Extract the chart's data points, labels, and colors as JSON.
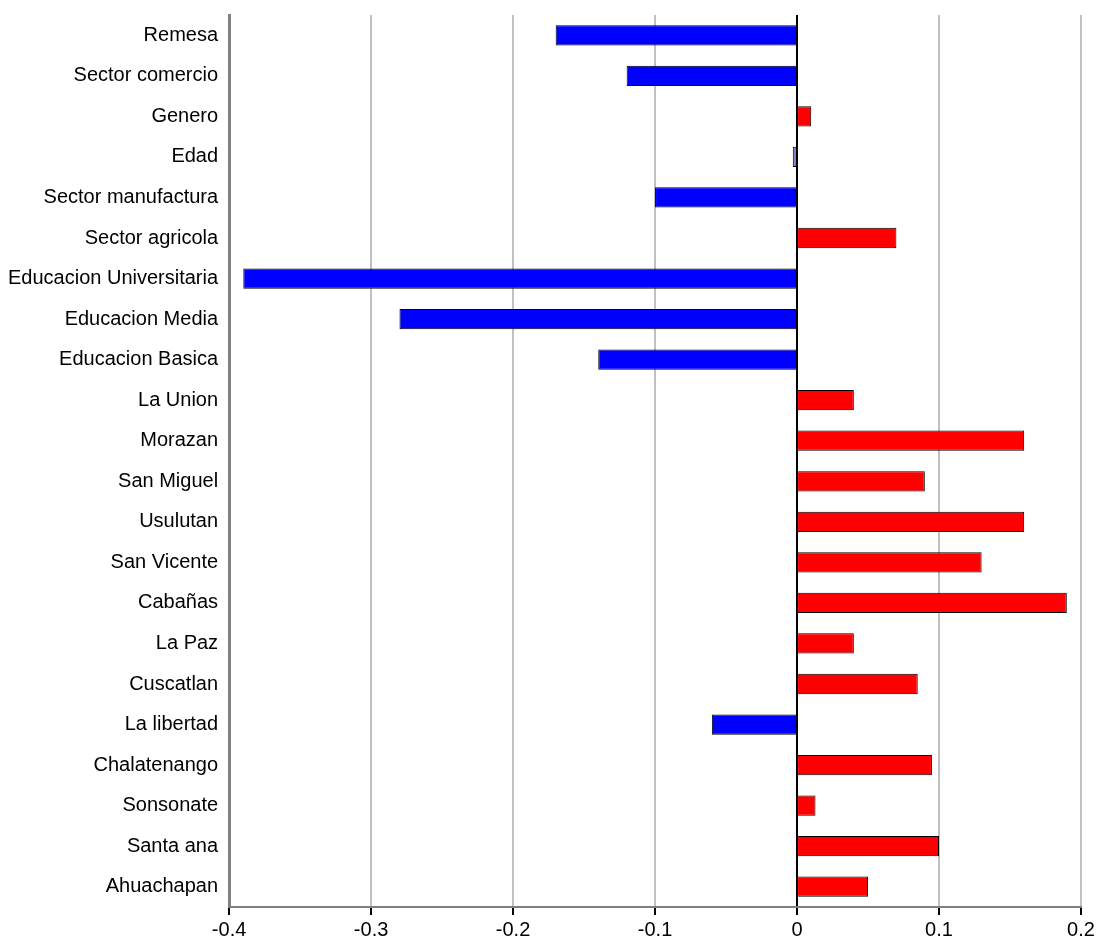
{
  "chart_data": {
    "type": "bar",
    "orientation": "horizontal",
    "categories": [
      "Remesa",
      "Sector comercio",
      "Genero",
      "Edad",
      "Sector manufactura",
      "Sector agricola",
      "Educacion Universitaria",
      "Educacion Media",
      "Educacion Basica",
      "La Union",
      "Morazan",
      "San Miguel",
      "Usulutan",
      "San Vicente",
      "Cabañas",
      "La Paz",
      "Cuscatlan",
      "La libertad",
      "Chalatenango",
      "Sonsonate",
      "Santa ana",
      "Ahuachapan"
    ],
    "values": [
      -0.17,
      -0.12,
      0.01,
      -0.003,
      -0.1,
      0.07,
      -0.39,
      -0.28,
      -0.14,
      0.04,
      0.16,
      0.09,
      0.16,
      0.13,
      0.19,
      0.04,
      0.085,
      -0.06,
      0.095,
      0.013,
      0.1,
      0.05
    ],
    "colors": [
      "#0000ff",
      "#0000ff",
      "#ff0000",
      "#8080c8",
      "#0000ff",
      "#ff0000",
      "#0000ff",
      "#0000ff",
      "#0000ff",
      "#ff0000",
      "#ff0000",
      "#ff0000",
      "#ff0000",
      "#ff0000",
      "#ff0000",
      "#ff0000",
      "#ff0000",
      "#0000ff",
      "#ff0000",
      "#ff0000",
      "#ff0000",
      "#ff0000"
    ],
    "xlim": [
      -0.4,
      0.2
    ],
    "xticks": [
      -0.4,
      -0.3,
      -0.2,
      -0.1,
      0,
      0.1,
      0.2
    ],
    "grid": "x",
    "legend": false
  }
}
